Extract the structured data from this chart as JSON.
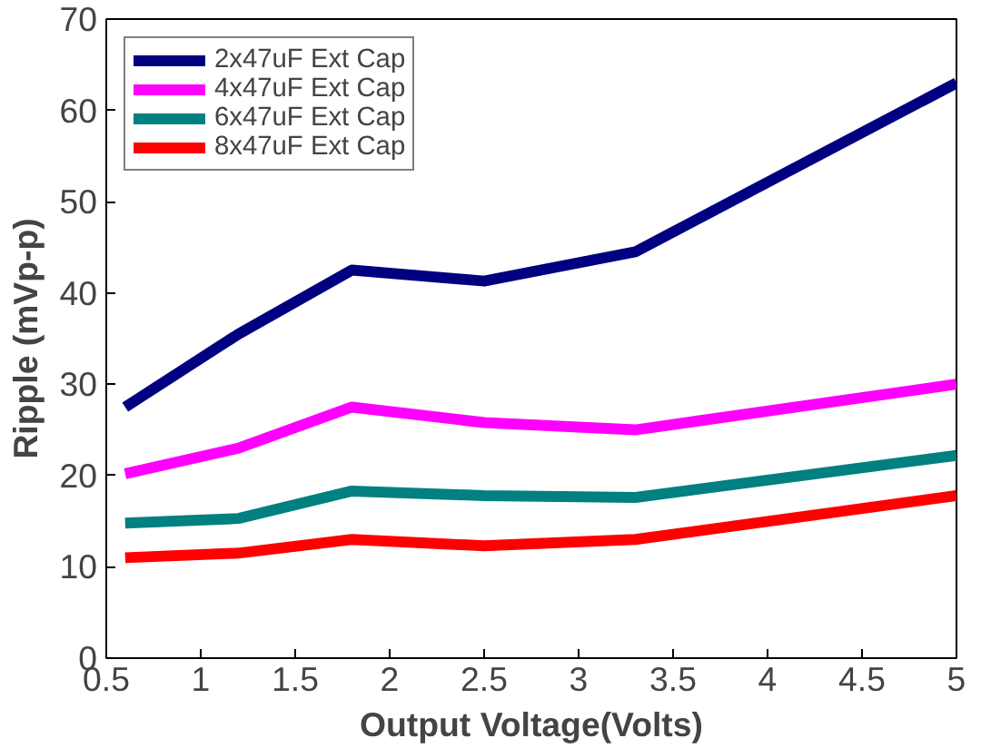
{
  "chart_data": {
    "type": "line",
    "xlabel": "Output Voltage(Volts)",
    "ylabel": "Ripple (mVp-p)",
    "xlim": [
      0.5,
      5
    ],
    "ylim": [
      0,
      70
    ],
    "xticks": [
      0.5,
      1,
      1.5,
      2,
      2.5,
      3,
      3.5,
      4,
      4.5,
      5
    ],
    "yticks": [
      0,
      10,
      20,
      30,
      40,
      50,
      60,
      70
    ],
    "grid": false,
    "legend": "top left",
    "line_style": "solid",
    "marker": "none",
    "x": [
      0.6,
      1.2,
      1.8,
      2.5,
      3.3,
      5
    ],
    "series": [
      {
        "name": "2x47uF Ext Cap",
        "color": "#000080",
        "values": [
          27.5,
          35.5,
          42.5,
          41.3,
          44.5,
          63
        ]
      },
      {
        "name": "4x47uF Ext Cap",
        "color": "#ff00ff",
        "values": [
          20.2,
          23,
          27.5,
          25.8,
          25,
          30
        ]
      },
      {
        "name": "6x47uF Ext Cap",
        "color": "#008080",
        "values": [
          14.8,
          15.3,
          18.3,
          17.8,
          17.6,
          22.2
        ]
      },
      {
        "name": "8x47uF Ext Cap",
        "color": "#ff0000",
        "values": [
          11,
          11.5,
          13,
          12.3,
          13,
          17.8
        ]
      }
    ]
  }
}
